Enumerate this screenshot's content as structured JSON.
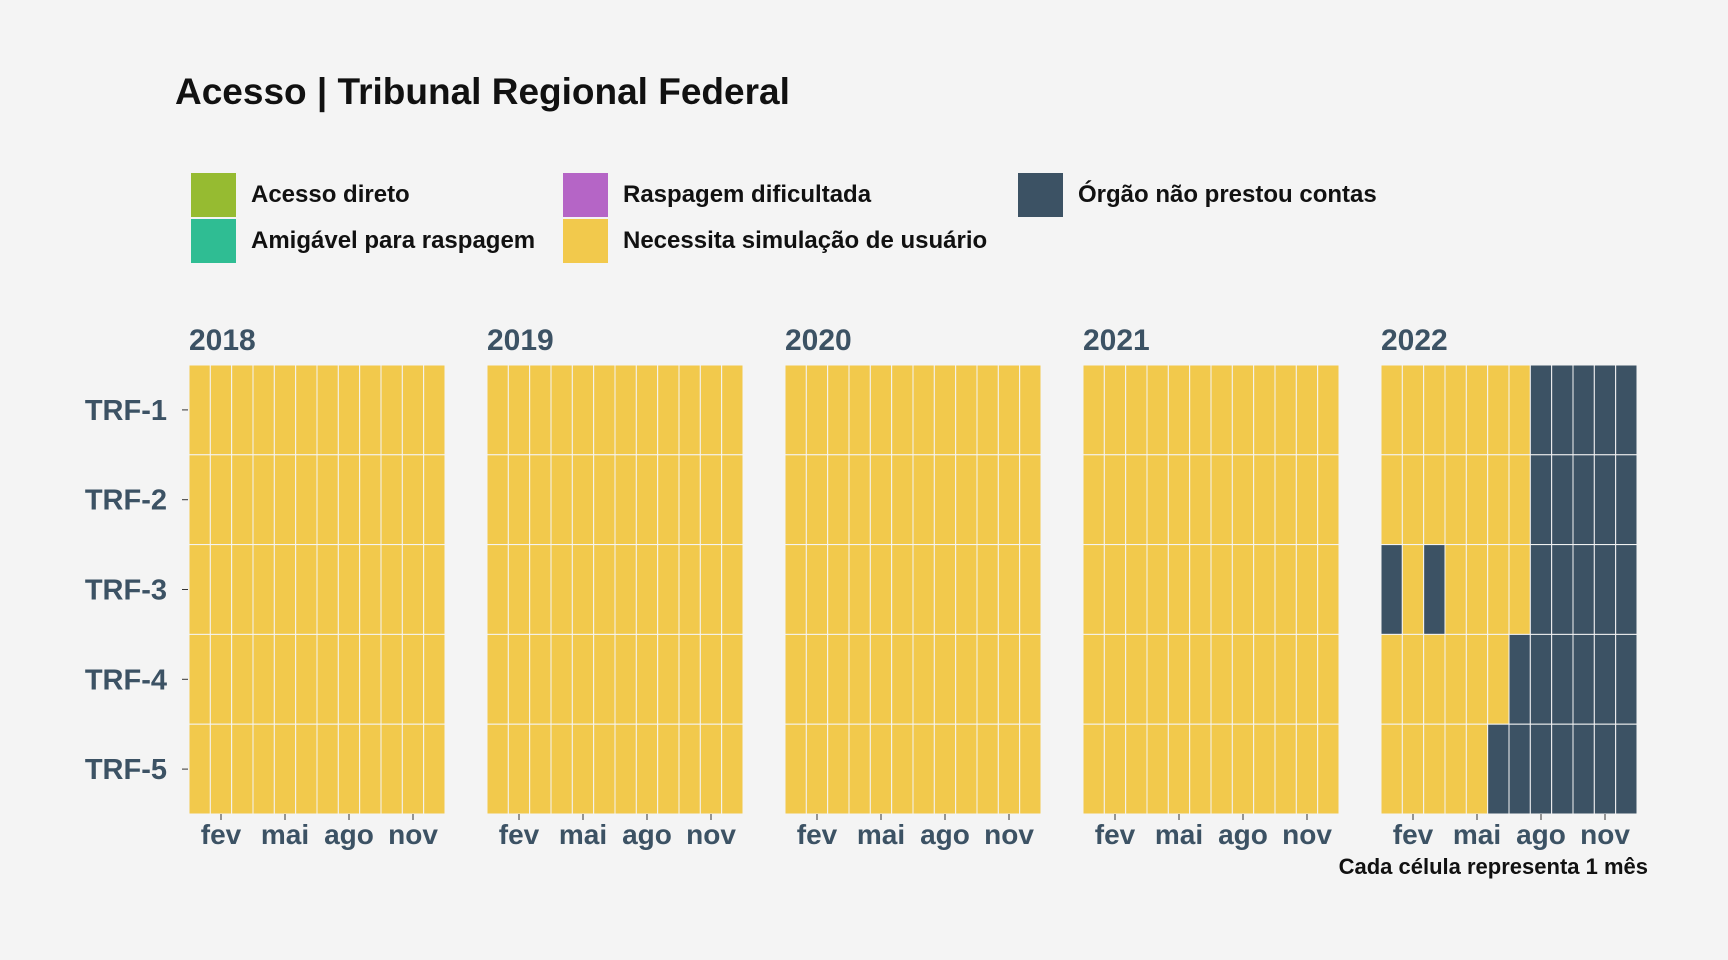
{
  "title": "Acesso | Tribunal Regional Federal",
  "caption": "Cada célula representa 1 mês",
  "legend": [
    {
      "label": "Acesso direto",
      "color": "#96bb31"
    },
    {
      "label": "Amigável para raspagem",
      "color": "#2fbd93"
    },
    {
      "label": "Raspagem dificultada",
      "color": "#b565c6"
    },
    {
      "label": "Necessita simulação de usuário",
      "color": "#f2c94c"
    },
    {
      "label": "Órgão não prestou contas",
      "color": "#3c5264"
    }
  ],
  "chart_data": {
    "type": "heatmap",
    "title": "Acesso | Tribunal Regional Federal",
    "facets": [
      "2018",
      "2019",
      "2020",
      "2021",
      "2022"
    ],
    "months": [
      "jan",
      "fev",
      "mar",
      "abr",
      "mai",
      "jun",
      "jul",
      "ago",
      "set",
      "out",
      "nov",
      "dez"
    ],
    "x_tick_labels": [
      "fev",
      "mai",
      "ago",
      "nov"
    ],
    "x_tick_months": [
      2,
      5,
      8,
      11
    ],
    "rows": [
      "TRF-1",
      "TRF-2",
      "TRF-3",
      "TRF-4",
      "TRF-5"
    ],
    "categories": {
      "N": "Necessita simulação de usuário",
      "O": "Órgão não prestou contas"
    },
    "category_colors": {
      "N": "#f2c94c",
      "O": "#3c5264"
    },
    "values": {
      "2018": [
        "NNNNNNNNNNNN",
        "NNNNNNNNNNNN",
        "NNNNNNNNNNNN",
        "NNNNNNNNNNNN",
        "NNNNNNNNNNNN"
      ],
      "2019": [
        "NNNNNNNNNNNN",
        "NNNNNNNNNNNN",
        "NNNNNNNNNNNN",
        "NNNNNNNNNNNN",
        "NNNNNNNNNNNN"
      ],
      "2020": [
        "NNNNNNNNNNNN",
        "NNNNNNNNNNNN",
        "NNNNNNNNNNNN",
        "NNNNNNNNNNNN",
        "NNNNNNNNNNNN"
      ],
      "2021": [
        "NNNNNNNNNNNN",
        "NNNNNNNNNNNN",
        "NNNNNNNNNNNN",
        "NNNNNNNNNNNN",
        "NNNNNNNNNNNN"
      ],
      "2022": [
        "NNNNNNNOOOOO",
        "NNNNNNNOOOOO",
        "ONONNNNOOOOO",
        "NNNNNNOOOOOO",
        "NNNNNOOOOOOO"
      ]
    },
    "caption": "Cada célula representa 1 mês"
  }
}
